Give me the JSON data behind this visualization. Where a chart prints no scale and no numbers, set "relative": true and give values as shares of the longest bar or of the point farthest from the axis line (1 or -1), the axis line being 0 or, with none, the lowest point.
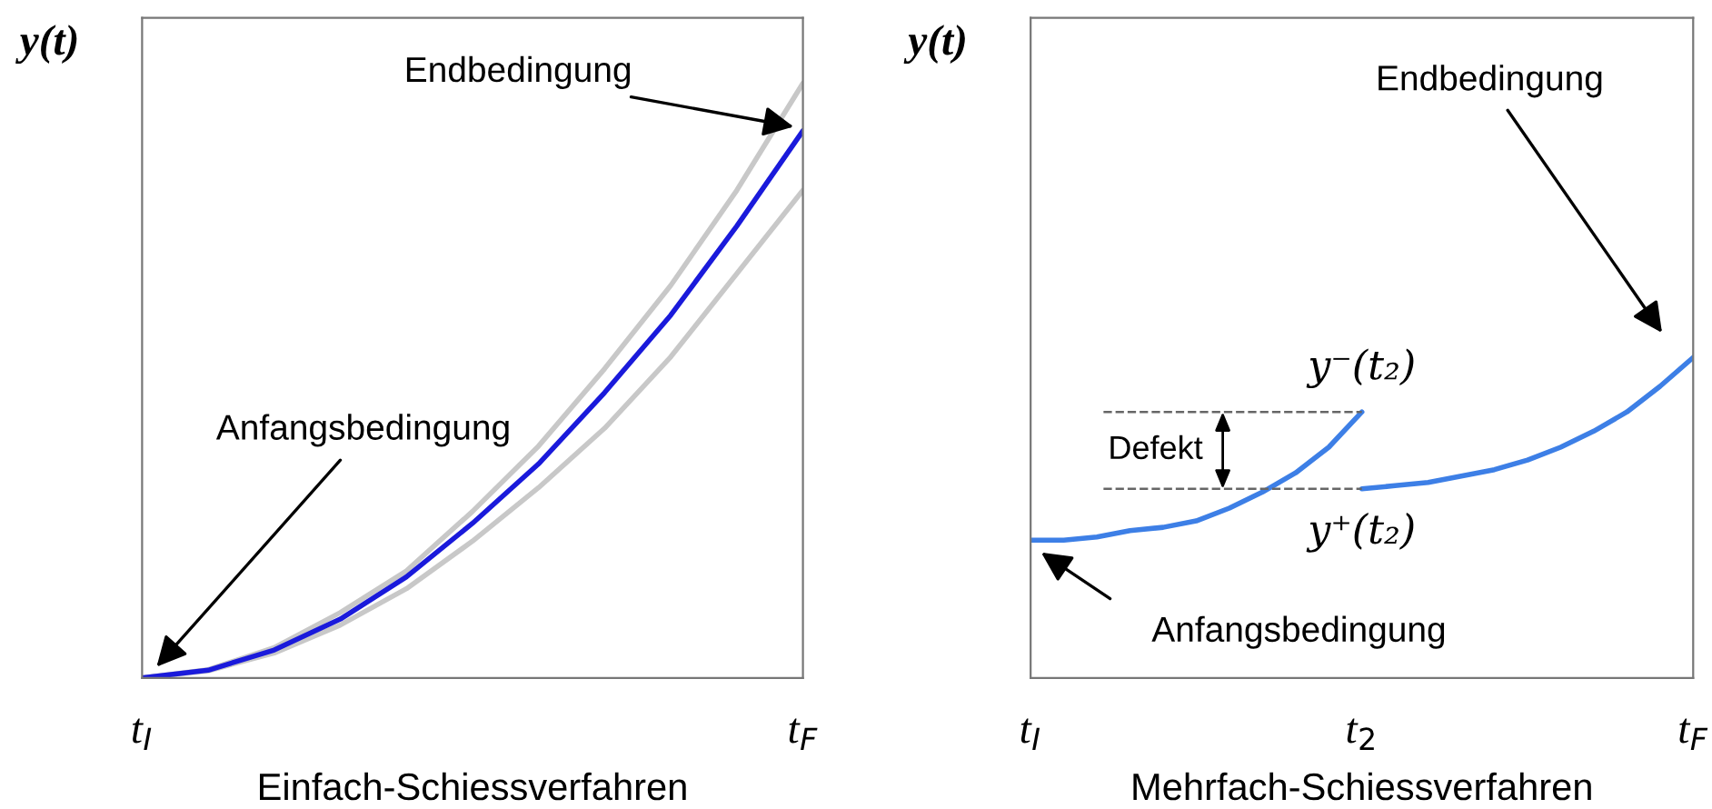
{
  "chart_data": [
    {
      "type": "line",
      "relative": true,
      "xlabel": "Einfach-Schiessverfahren",
      "ylabel": "y(t)",
      "categories": [
        "t$_{I}$",
        null,
        null,
        null,
        null,
        null,
        null,
        null,
        null,
        null,
        "t$_{F}$"
      ],
      "series": [
        {
          "color": "#c8c8c8",
          "values": [
            0,
            0.014,
            0.051,
            0.11,
            0.18,
            0.28,
            0.39,
            0.52,
            0.66,
            0.82,
            1
          ]
        },
        {
          "color": "#c8c8c8",
          "values": [
            0,
            0.012,
            0.042,
            0.089,
            0.15,
            0.23,
            0.32,
            0.42,
            0.54,
            0.68,
            0.82
          ]
        },
        {
          "color": "#1a1adb",
          "values": [
            0,
            0.013,
            0.047,
            0.099,
            0.17,
            0.26,
            0.36,
            0.48,
            0.61,
            0.76,
            0.92
          ]
        }
      ],
      "annotations": [
        "Endbedingung",
        "Anfangsbedingung"
      ]
    },
    {
      "type": "line",
      "relative": true,
      "xlabel": "Mehrfach-Schiessverfahren",
      "ylabel": "y(t)",
      "categories": [
        "t$_{I}$",
        null,
        null,
        null,
        null,
        null,
        null,
        null,
        null,
        null,
        "t$_{2}$",
        null,
        null,
        null,
        null,
        null,
        null,
        null,
        null,
        null,
        "t$_{F}$"
      ],
      "series": [
        {
          "color": "#3d7fe6",
          "values": [
            0.43,
            0.43,
            0.44,
            0.46,
            0.47,
            0.49,
            0.53,
            0.58,
            0.64,
            0.72,
            0.83,
            null,
            null,
            null,
            null,
            null,
            null,
            null,
            null,
            null,
            null
          ]
        },
        {
          "color": "#3d7fe6",
          "values": [
            null,
            null,
            null,
            null,
            null,
            null,
            null,
            null,
            null,
            null,
            0.59,
            0.6,
            0.61,
            0.63,
            0.65,
            0.68,
            0.72,
            0.77,
            0.83,
            0.91,
            1
          ]
        }
      ],
      "annotations": [
        "Endbedingung",
        "Anfangsbedingung",
        {
          "text": "y⁻(t₂)",
          "x": "t$_{2}$",
          "y": 0.83
        },
        {
          "text": "y⁺(t₂)",
          "x": "t$_{2}$",
          "y": 0.59
        },
        "Defekt"
      ]
    }
  ]
}
